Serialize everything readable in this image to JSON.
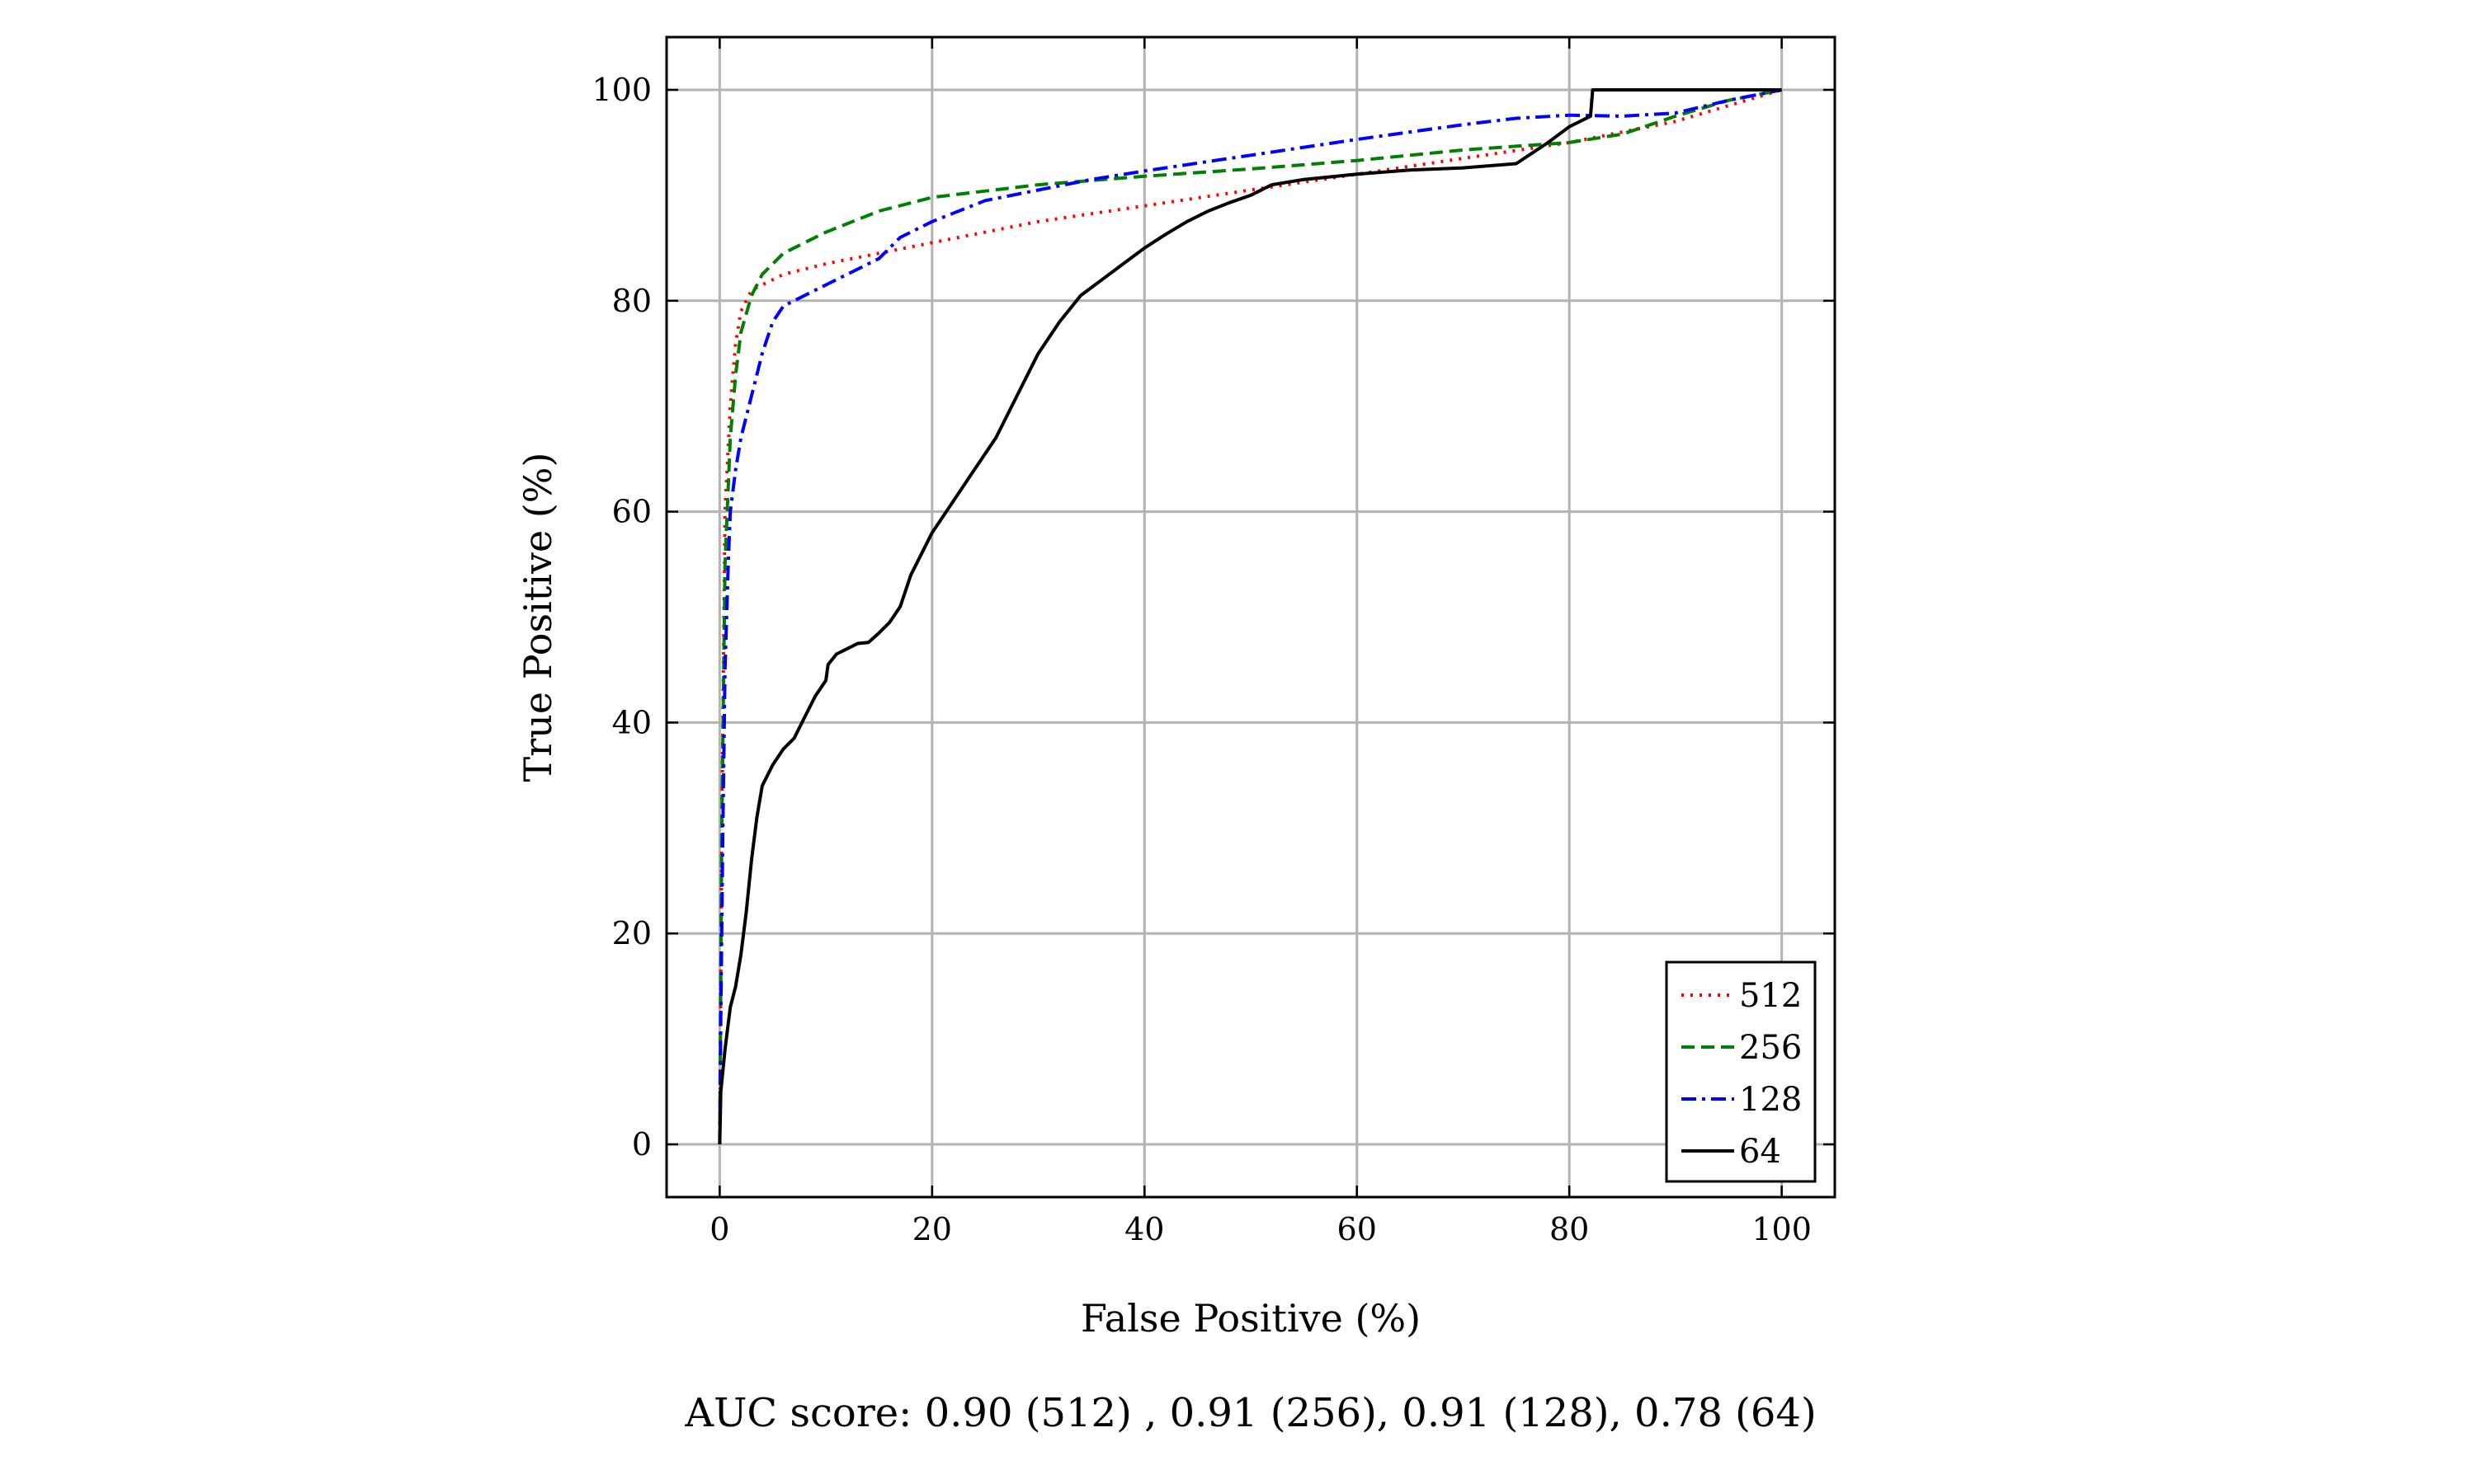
{
  "chart_data": {
    "type": "line",
    "xlabel": "False Positive (%)",
    "ylabel": "True Positive (%)",
    "xlim": [
      -5,
      105
    ],
    "ylim": [
      -5,
      105
    ],
    "xticks": [
      "0",
      "20",
      "40",
      "60",
      "80",
      "100"
    ],
    "yticks": [
      "0",
      "20",
      "40",
      "60",
      "80",
      "100"
    ],
    "xtick_values": [
      0,
      20,
      40,
      60,
      80,
      100
    ],
    "ytick_values": [
      0,
      20,
      40,
      60,
      80,
      100
    ],
    "grid": true,
    "legend_position": "bottom-right",
    "caption": "AUC score: 0.90 (512) , 0.91 (256), 0.91 (128), 0.78 (64)",
    "series": [
      {
        "name": "512",
        "color": "#ff0000",
        "dash": "dotted",
        "x": [
          0,
          0.2,
          0.5,
          1,
          1.5,
          2,
          3,
          4,
          6,
          10,
          15,
          20,
          30,
          40,
          50,
          60,
          70,
          80,
          90,
          95,
          100
        ],
        "y": [
          0,
          30,
          60,
          70,
          76,
          79,
          81,
          81.5,
          82.5,
          83.5,
          84.5,
          85.5,
          87.5,
          89,
          90.5,
          92,
          93.5,
          95,
          97,
          98.5,
          100
        ]
      },
      {
        "name": "256",
        "color": "#007f00",
        "dash": "dashed",
        "x": [
          0,
          0.2,
          0.5,
          1,
          1.5,
          2,
          3,
          4,
          6,
          8,
          10,
          15,
          20,
          30,
          40,
          50,
          60,
          70,
          80,
          85,
          90,
          95,
          100
        ],
        "y": [
          0,
          30,
          55,
          67,
          73,
          77,
          80.5,
          82.5,
          84.5,
          85.5,
          86.5,
          88.5,
          89.8,
          91,
          91.8,
          92.5,
          93.3,
          94.3,
          95,
          95.8,
          97.5,
          99,
          100
        ]
      },
      {
        "name": "128",
        "color": "#0000ff",
        "dash": "dashdot",
        "x": [
          0,
          0.1,
          0.3,
          0.5,
          0.8,
          1,
          1.5,
          2,
          3,
          4,
          5,
          6,
          8,
          10,
          12,
          15,
          17,
          20,
          25,
          30,
          35,
          40,
          50,
          60,
          70,
          75,
          80,
          85,
          90,
          95,
          100
        ],
        "y": [
          0,
          12,
          30,
          45,
          55,
          60,
          64,
          67,
          71,
          75,
          78,
          79.5,
          80.5,
          81.5,
          82.5,
          84,
          86,
          87.5,
          89.5,
          90.5,
          91.5,
          92.3,
          93.8,
          95.3,
          96.7,
          97.3,
          97.6,
          97.5,
          97.8,
          99,
          100
        ]
      },
      {
        "name": "64",
        "color": "#000000",
        "dash": "solid",
        "x": [
          0,
          0.1,
          0.5,
          1,
          1.5,
          2,
          2.5,
          3,
          3.5,
          4,
          5,
          6,
          7,
          8,
          9,
          10,
          10.2,
          11,
          12,
          13,
          14,
          15,
          16,
          17,
          18,
          20,
          22,
          24,
          26,
          28,
          30,
          32,
          34,
          36,
          38,
          40,
          42,
          44,
          46,
          48,
          50,
          52,
          55,
          60,
          65,
          70,
          75,
          78,
          80,
          82,
          82.2,
          85,
          90,
          95,
          100
        ],
        "y": [
          0,
          5,
          9,
          13,
          15,
          18,
          22,
          27,
          31,
          34,
          36,
          37.5,
          38.5,
          40.5,
          42.5,
          44,
          45.5,
          46.5,
          47,
          47.5,
          47.6,
          48.5,
          49.5,
          51,
          54,
          58,
          61,
          64,
          67,
          71,
          75,
          78,
          80.5,
          82,
          83.5,
          85,
          86.3,
          87.5,
          88.5,
          89.3,
          90,
          91,
          91.5,
          92,
          92.4,
          92.6,
          93,
          95,
          96.5,
          97.5,
          100,
          100,
          100,
          100,
          100
        ]
      }
    ]
  }
}
